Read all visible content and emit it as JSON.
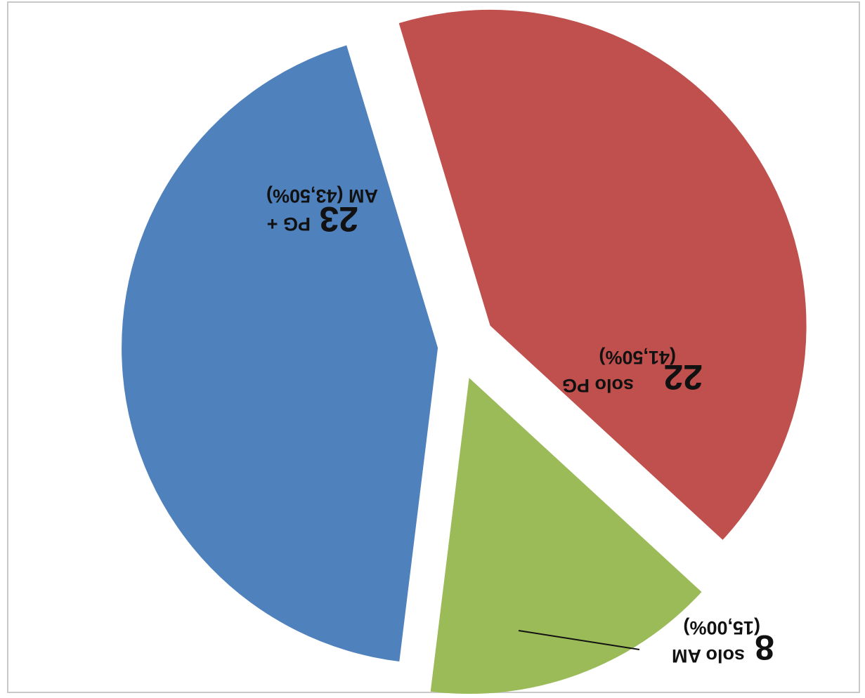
{
  "chart_data": {
    "type": "pie",
    "orientation": "rotated 180°",
    "slices": [
      {
        "value": 23,
        "percent": 43.5,
        "label_count": "23",
        "label_text": "PG +",
        "label_text2": "AM (43,50%)",
        "color": "#4f81bd"
      },
      {
        "value": 22,
        "percent": 41.5,
        "label_count": "22",
        "label_text": "solo PG",
        "label_text2": "(41,50%)",
        "color": "#c0504d"
      },
      {
        "value": 8,
        "percent": 15.0,
        "label_count": "8",
        "label_text": "solo AM",
        "label_text2": "(15,00%)",
        "color": "#9bbb59"
      }
    ]
  }
}
